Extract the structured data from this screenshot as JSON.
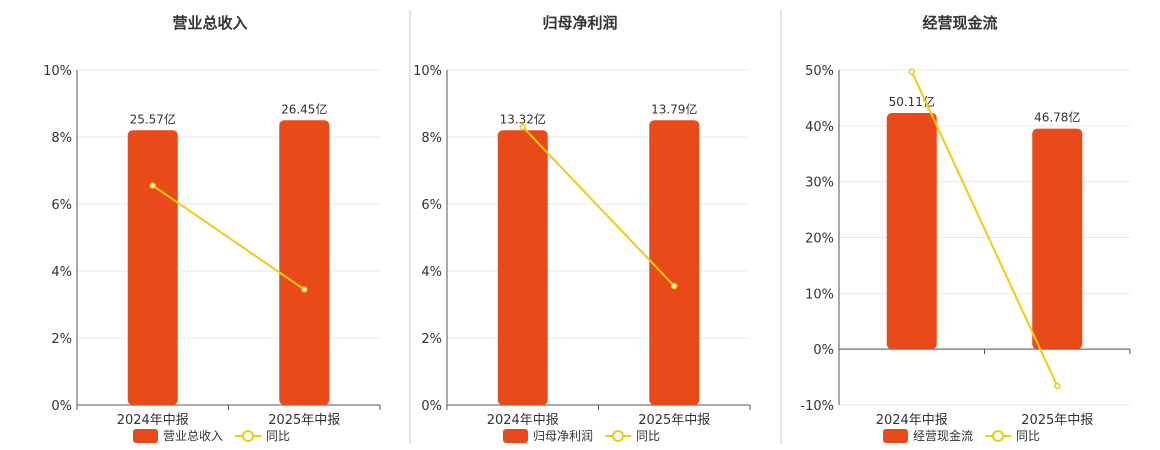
{
  "colors": {
    "bar": "#e84a1a",
    "line": "#f2cc0c",
    "grid": "#e6e8f0",
    "axis": "#555555",
    "divider": "#c8c8c8"
  },
  "chart_data": [
    {
      "type": "bar",
      "title": "营业总收入",
      "categories": [
        "2024年中报",
        "2025年中报"
      ],
      "series": [
        {
          "name": "营业总收入",
          "type": "bar",
          "values": [
            8.2,
            8.5
          ],
          "labels": [
            "25.57亿",
            "26.45亿"
          ]
        },
        {
          "name": "同比",
          "type": "line",
          "values": [
            6.55,
            3.45
          ]
        }
      ],
      "ylim": [
        0,
        10
      ],
      "yticks": [
        "0%",
        "2%",
        "4%",
        "6%",
        "8%",
        "10%"
      ],
      "ytick_values": [
        0,
        2,
        4,
        6,
        8,
        10
      ],
      "grid": true,
      "legend": "bottom"
    },
    {
      "type": "bar",
      "title": "归母净利润",
      "categories": [
        "2024年中报",
        "2025年中报"
      ],
      "series": [
        {
          "name": "归母净利润",
          "type": "bar",
          "values": [
            8.2,
            8.5
          ],
          "labels": [
            "13.32亿",
            "13.79亿"
          ]
        },
        {
          "name": "同比",
          "type": "line",
          "values": [
            8.3,
            3.55
          ]
        }
      ],
      "ylim": [
        0,
        10
      ],
      "yticks": [
        "0%",
        "2%",
        "4%",
        "6%",
        "8%",
        "10%"
      ],
      "ytick_values": [
        0,
        2,
        4,
        6,
        8,
        10
      ],
      "grid": true,
      "legend": "bottom"
    },
    {
      "type": "bar",
      "title": "经营现金流",
      "categories": [
        "2024年中报",
        "2025年中报"
      ],
      "series": [
        {
          "name": "经营现金流",
          "type": "bar",
          "values": [
            42.3,
            39.5
          ],
          "labels": [
            "50.11亿",
            "46.78亿"
          ]
        },
        {
          "name": "同比",
          "type": "line",
          "values": [
            49.7,
            -6.6
          ]
        }
      ],
      "ylim": [
        -10,
        50
      ],
      "yticks": [
        "-10%",
        "0%",
        "10%",
        "20%",
        "30%",
        "40%",
        "50%"
      ],
      "ytick_values": [
        -10,
        0,
        10,
        20,
        30,
        40,
        50
      ],
      "grid": true,
      "legend": "bottom"
    }
  ]
}
